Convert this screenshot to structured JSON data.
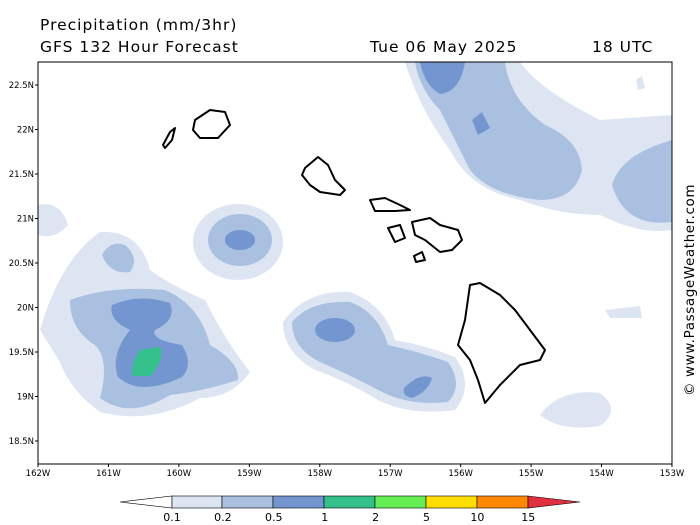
{
  "header": {
    "title": "Precipitation (mm/3hr)",
    "subtitle": "GFS 132 Hour Forecast",
    "date": "Tue 06 May 2025",
    "time": "18 UTC"
  },
  "axes": {
    "lat_labels": [
      "22.5N",
      "22N",
      "21.5N",
      "21N",
      "20.5N",
      "20N",
      "19.5N",
      "19N",
      "18.5N"
    ],
    "lon_labels": [
      "162W",
      "161W",
      "160W",
      "159W",
      "158W",
      "157W",
      "156W",
      "155W",
      "154W",
      "153W"
    ]
  },
  "colorbar": {
    "labels": [
      "0.1",
      "0.2",
      "0.5",
      "1",
      "2",
      "5",
      "10",
      "15"
    ]
  },
  "credit": "© www.PassageWeather.com"
}
